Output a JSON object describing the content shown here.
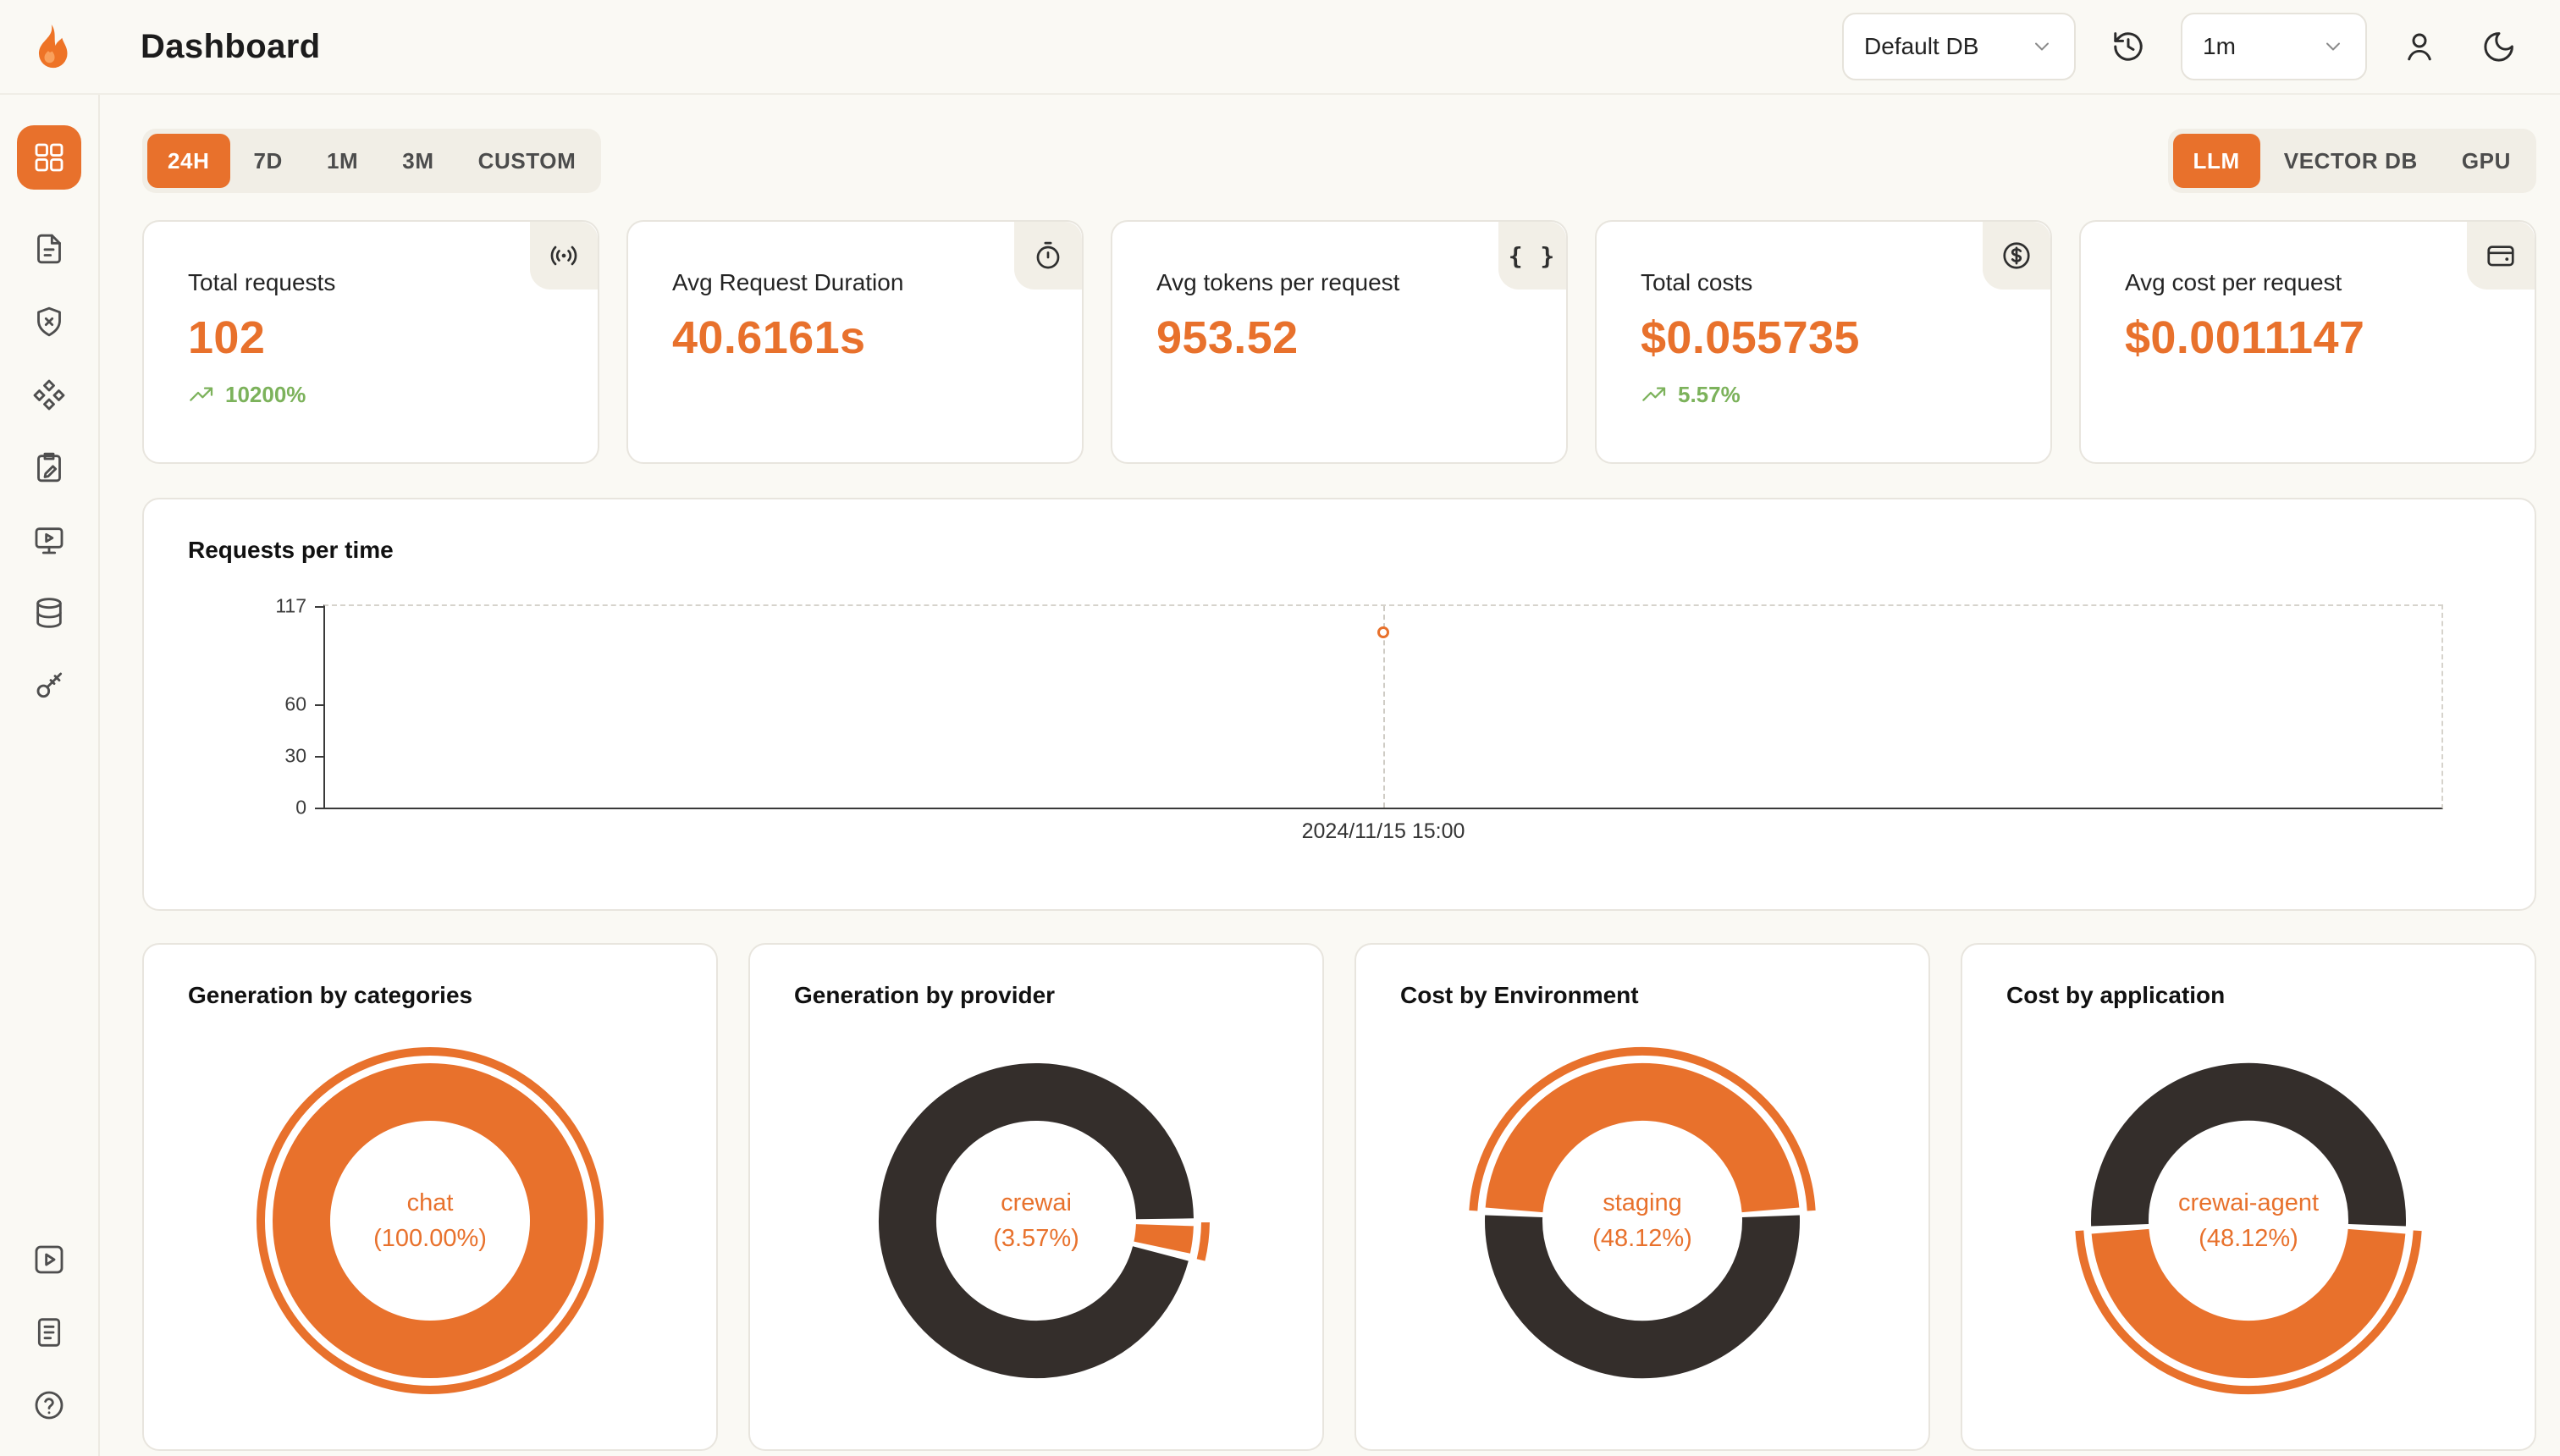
{
  "app": {
    "title": "Dashboard"
  },
  "colors": {
    "accent": "#E8712C",
    "dark": "#342E2B",
    "green": "#7CB25B"
  },
  "header": {
    "db_select": "Default DB",
    "interval_select": "1m",
    "icons": [
      "history-icon",
      "user-icon",
      "moon-icon",
      "chevron-down-icon",
      "flame-logo-icon"
    ]
  },
  "sidebar": {
    "top": [
      {
        "name": "dashboard",
        "icon": "layout-grid-icon",
        "active": true
      },
      {
        "name": "requests",
        "icon": "file-invoice-icon",
        "active": false
      },
      {
        "name": "exceptions",
        "icon": "shield-x-icon",
        "active": false
      },
      {
        "name": "prompt-hub",
        "icon": "shapes-icon",
        "active": false
      },
      {
        "name": "evaluations",
        "icon": "clipboard-edit-icon",
        "active": false
      },
      {
        "name": "playground",
        "icon": "monitor-play-icon",
        "active": false
      },
      {
        "name": "databases",
        "icon": "database-icon",
        "active": false
      },
      {
        "name": "api-keys",
        "icon": "key-icon",
        "active": false
      }
    ],
    "bottom": [
      {
        "name": "getting-started",
        "icon": "square-play-icon",
        "active": false
      },
      {
        "name": "documentation",
        "icon": "file-lines-icon",
        "active": false
      },
      {
        "name": "support",
        "icon": "help-circle-icon",
        "active": false
      }
    ]
  },
  "filters": {
    "time_ranges": [
      "24H",
      "7D",
      "1M",
      "3M",
      "CUSTOM"
    ],
    "active_time_range": "24H",
    "modes": [
      "LLM",
      "VECTOR DB",
      "GPU"
    ],
    "active_mode": "LLM"
  },
  "stats": [
    {
      "label": "Total requests",
      "value": "102",
      "delta": "10200%",
      "icon": "broadcast-icon"
    },
    {
      "label": "Avg Request Duration",
      "value": "40.6161s",
      "delta": null,
      "icon": "timer-icon"
    },
    {
      "label": "Avg tokens per request",
      "value": "953.52",
      "delta": null,
      "icon": "braces-icon"
    },
    {
      "label": "Total costs",
      "value": "$0.055735",
      "delta": "5.57%",
      "icon": "badge-dollar-icon"
    },
    {
      "label": "Avg cost per request",
      "value": "$0.0011147",
      "delta": null,
      "icon": "wallet-icon"
    }
  ],
  "chart_data": [
    {
      "type": "line",
      "title": "Requests per time",
      "x": [
        "2024/11/15 15:00"
      ],
      "values": [
        102
      ],
      "ylim": [
        0,
        117
      ],
      "yticks": [
        0,
        30,
        60,
        117
      ],
      "grid": "dashed-frame",
      "legend": "none",
      "marker": "hollow-circle"
    },
    {
      "type": "pie",
      "title": "Generation by categories",
      "center_label": [
        "chat",
        "(100.00%)"
      ],
      "accent_center_deg": 0,
      "segments": [
        {
          "label": "chat",
          "value": 100.0,
          "color": "accent"
        }
      ]
    },
    {
      "type": "pie",
      "title": "Generation by provider",
      "center_label": [
        "crewai",
        "(3.57%)"
      ],
      "accent_center_deg": 97,
      "segments": [
        {
          "label": "crewai",
          "value": 3.57,
          "color": "accent"
        },
        {
          "label": null,
          "value": 96.43,
          "color": "dark"
        }
      ]
    },
    {
      "type": "pie",
      "title": "Cost by Environment",
      "center_label": [
        "staging",
        "(48.12%)"
      ],
      "accent_center_deg": 0,
      "segments": [
        {
          "label": "staging",
          "value": 48.12,
          "color": "accent"
        },
        {
          "label": null,
          "value": 51.88,
          "color": "dark"
        }
      ]
    },
    {
      "type": "pie",
      "title": "Cost by application",
      "center_label": [
        "crewai-agent",
        "(48.12%)"
      ],
      "accent_center_deg": 180,
      "segments": [
        {
          "label": "crewai-agent",
          "value": 48.12,
          "color": "accent"
        },
        {
          "label": null,
          "value": 51.88,
          "color": "dark"
        }
      ]
    }
  ]
}
